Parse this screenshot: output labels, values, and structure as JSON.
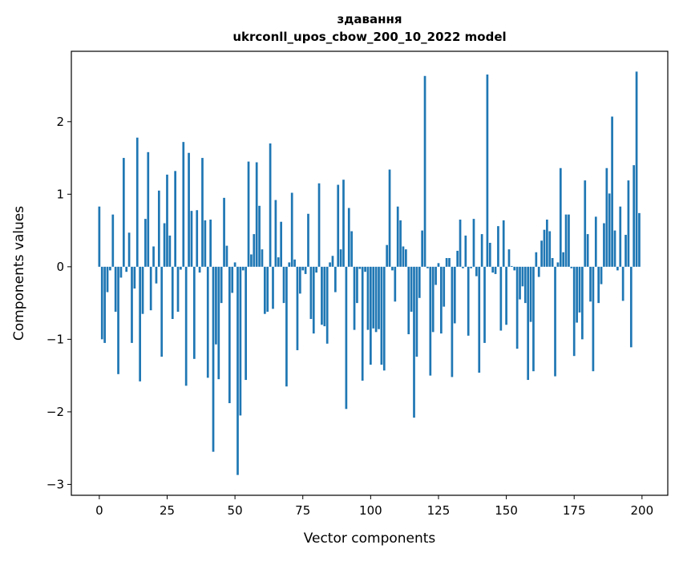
{
  "chart_data": {
    "type": "bar",
    "title": "здавання",
    "subtitle": "ukrconll_upos_cbow_200_10_2022 model",
    "xlabel": "Vector components",
    "ylabel": "Components values",
    "xlim": [
      -10.3,
      209.5
    ],
    "ylim": [
      -3.15,
      2.97
    ],
    "xticks": [
      0,
      25,
      50,
      75,
      100,
      125,
      150,
      175,
      200
    ],
    "xtick_labels": [
      "0",
      "25",
      "50",
      "75",
      "100",
      "125",
      "150",
      "175",
      "200"
    ],
    "yticks": [
      -3,
      -2,
      -1,
      0,
      1,
      2
    ],
    "ytick_labels": [
      "−3",
      "−2",
      "−1",
      "0",
      "1",
      "2"
    ],
    "grid": false,
    "bar_color": "#1f77b4",
    "values": [
      0.83,
      -1.0,
      -1.05,
      -0.35,
      -0.05,
      0.72,
      -0.62,
      -1.48,
      -0.15,
      1.5,
      -0.07,
      0.47,
      -1.05,
      -0.3,
      1.78,
      -1.58,
      -0.65,
      0.66,
      1.58,
      -0.6,
      0.28,
      -0.23,
      1.05,
      -1.24,
      0.6,
      1.27,
      0.43,
      -0.72,
      1.32,
      -0.62,
      -0.04,
      1.72,
      -1.64,
      1.57,
      0.77,
      -1.27,
      0.78,
      -0.08,
      1.5,
      0.64,
      -1.53,
      0.65,
      -2.55,
      -1.07,
      -1.55,
      -0.5,
      0.95,
      0.29,
      -1.88,
      -0.36,
      0.06,
      -2.87,
      -2.05,
      -0.05,
      -1.56,
      1.45,
      0.17,
      0.45,
      1.44,
      0.84,
      0.24,
      -0.65,
      -0.62,
      1.7,
      -0.58,
      0.92,
      0.13,
      0.62,
      -0.5,
      -1.65,
      0.06,
      1.02,
      0.1,
      -1.15,
      -0.37,
      -0.05,
      -0.1,
      0.73,
      -0.72,
      -0.92,
      -0.08,
      1.15,
      -0.8,
      -0.82,
      -1.06,
      0.06,
      0.15,
      -0.35,
      1.13,
      0.24,
      1.2,
      -1.96,
      0.81,
      0.49,
      -0.87,
      -0.5,
      -0.03,
      -1.57,
      -0.07,
      -0.87,
      -1.35,
      -0.85,
      -0.9,
      -0.86,
      -1.35,
      -1.43,
      0.3,
      1.34,
      -0.05,
      -0.48,
      0.83,
      0.64,
      0.28,
      0.24,
      -0.93,
      -0.62,
      -2.08,
      -1.24,
      -0.43,
      0.5,
      2.63,
      -0.02,
      -1.5,
      -0.9,
      -0.25,
      0.05,
      -0.92,
      -0.55,
      0.12,
      0.12,
      -1.52,
      -0.78,
      0.22,
      0.65,
      -0.02,
      0.43,
      -0.95,
      -0.02,
      0.66,
      -0.13,
      -1.46,
      0.45,
      -1.05,
      2.65,
      0.33,
      -0.08,
      -0.1,
      0.56,
      -0.88,
      0.64,
      -0.8,
      0.24,
      0.01,
      -0.05,
      -1.13,
      -0.45,
      -0.27,
      -0.5,
      -1.56,
      -0.76,
      -1.44,
      0.2,
      -0.14,
      0.36,
      0.51,
      0.65,
      0.49,
      0.12,
      -1.51,
      0.06,
      1.36,
      0.2,
      0.72,
      0.72,
      -0.02,
      -1.23,
      -0.77,
      -0.63,
      -1.0,
      1.19,
      0.45,
      -0.48,
      -1.44,
      0.69,
      -0.5,
      -0.24,
      0.6,
      1.36,
      1.01,
      2.07,
      0.5,
      -0.05,
      0.83,
      -0.47,
      0.44,
      1.19,
      -1.11,
      1.4,
      2.69,
      0.74
    ]
  }
}
